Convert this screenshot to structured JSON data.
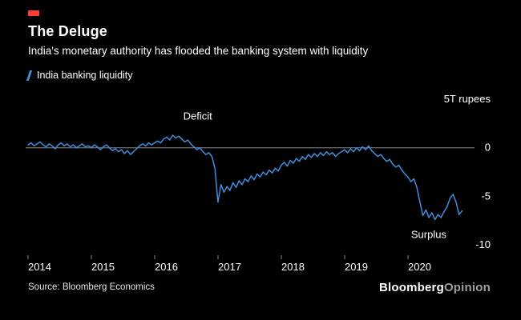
{
  "colors": {
    "background": "#000000",
    "text": "#ffffff",
    "line_blue": "#3E8EDE",
    "zero_line": "#8a8a8a",
    "axis_tick": "#8a8a8a",
    "accent_red": "#FF3B2F",
    "logo_muted": "#9aa0a6"
  },
  "legend": {
    "marker": "slash-icon"
  },
  "footer": {
    "source": "Source: Bloomberg Economics",
    "logo_bold": "Bloomberg",
    "logo_light": "Opinion"
  },
  "chart_data": {
    "type": "line",
    "title": "The Deluge",
    "subtitle": "India's monetary authority has flooded the banking system with liquidity",
    "unit": "T rupees",
    "xlim": [
      2014,
      2021
    ],
    "ylim": [
      -11,
      6
    ],
    "grid": false,
    "zero_line": true,
    "legend_position": "top-left",
    "x_ticks": [
      2014,
      2015,
      2016,
      2017,
      2018,
      2019,
      2020
    ],
    "y_ticks": [
      {
        "v": 5,
        "label": "5T rupees"
      },
      {
        "v": 0,
        "label": "0"
      },
      {
        "v": -5,
        "label": "-5"
      },
      {
        "v": -10,
        "label": "-10"
      }
    ],
    "annotations": [
      {
        "x": 2016.45,
        "y": 2.9,
        "label": "Deficit"
      },
      {
        "x": 2020.05,
        "y": -9.3,
        "label": "Surplus"
      }
    ],
    "series": [
      {
        "name": "India banking liquidity",
        "x_start": 2014,
        "x_step": 0.0476,
        "values": [
          0.3,
          0.5,
          0.2,
          0.4,
          0.6,
          0.3,
          0.1,
          0.4,
          0.2,
          -0.1,
          0.3,
          0.5,
          0.2,
          0.4,
          0.1,
          0.3,
          0.0,
          0.2,
          0.4,
          0.1,
          0.2,
          0.0,
          0.3,
          0.1,
          -0.2,
          0.1,
          0.3,
          0.0,
          -0.3,
          -0.1,
          -0.4,
          -0.2,
          -0.6,
          -0.3,
          -0.7,
          -0.4,
          -0.1,
          0.2,
          0.4,
          0.2,
          0.5,
          0.3,
          0.5,
          0.7,
          0.5,
          0.9,
          1.1,
          0.8,
          1.3,
          1.0,
          1.2,
          0.9,
          0.6,
          0.8,
          0.4,
          0.1,
          -0.2,
          0.0,
          -0.4,
          -0.7,
          -0.5,
          -0.9,
          -2.1,
          -5.6,
          -3.8,
          -4.6,
          -4.0,
          -4.4,
          -3.6,
          -4.1,
          -3.4,
          -3.8,
          -3.2,
          -3.5,
          -2.9,
          -3.3,
          -2.7,
          -3.0,
          -2.5,
          -2.8,
          -2.3,
          -2.6,
          -2.1,
          -2.4,
          -1.8,
          -1.5,
          -1.9,
          -1.3,
          -1.6,
          -1.1,
          -1.4,
          -0.9,
          -1.2,
          -0.7,
          -1.0,
          -0.6,
          -0.9,
          -0.5,
          -0.8,
          -0.4,
          -0.7,
          -0.5,
          -0.9,
          -0.6,
          -0.4,
          -0.2,
          -0.5,
          -0.1,
          -0.4,
          0.0,
          -0.3,
          0.1,
          -0.2,
          0.2,
          -0.3,
          -0.6,
          -0.9,
          -0.7,
          -1.1,
          -1.4,
          -1.2,
          -1.7,
          -2.0,
          -1.8,
          -2.3,
          -2.7,
          -3.0,
          -3.5,
          -3.2,
          -4.1,
          -5.6,
          -7.0,
          -6.4,
          -7.2,
          -6.7,
          -7.4,
          -6.9,
          -7.2,
          -6.6,
          -6.1,
          -5.2,
          -4.8,
          -5.6,
          -6.9,
          -6.5
        ]
      }
    ]
  }
}
